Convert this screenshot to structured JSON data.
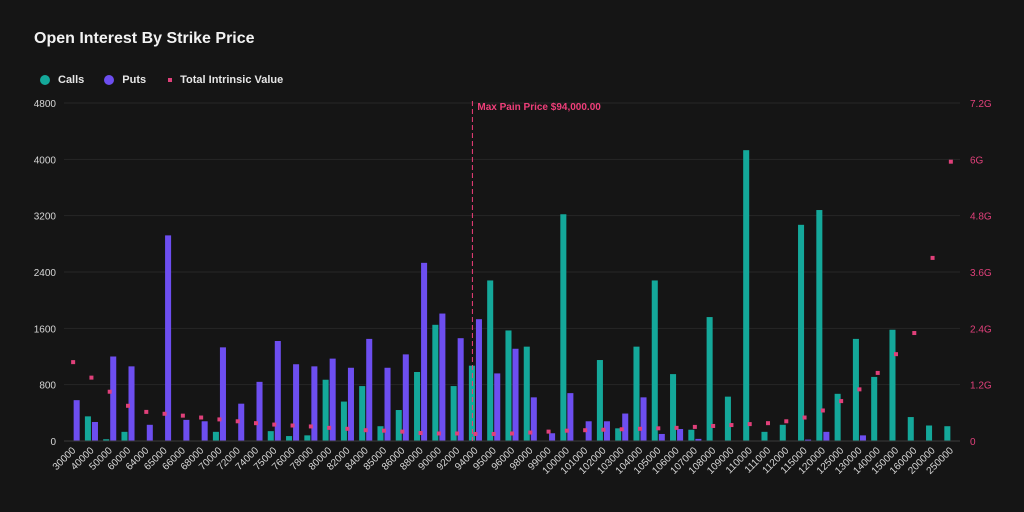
{
  "chart_data": {
    "type": "bar",
    "title": "Open Interest By Strike Price",
    "categories": [
      "30000",
      "40000",
      "50000",
      "60000",
      "64000",
      "65000",
      "66000",
      "68000",
      "70000",
      "72000",
      "74000",
      "75000",
      "76000",
      "78000",
      "80000",
      "82000",
      "84000",
      "85000",
      "86000",
      "88000",
      "90000",
      "92000",
      "94000",
      "95000",
      "96000",
      "98000",
      "99000",
      "100000",
      "101000",
      "102000",
      "103000",
      "104000",
      "105000",
      "106000",
      "107000",
      "108000",
      "109000",
      "110000",
      "111000",
      "112000",
      "115000",
      "120000",
      "125000",
      "130000",
      "140000",
      "150000",
      "160000",
      "200000",
      "250000"
    ],
    "series": [
      {
        "name": "Calls",
        "type": "bar",
        "axis": "left",
        "color": "#14a89a",
        "values": [
          5,
          350,
          25,
          130,
          5,
          5,
          5,
          5,
          130,
          5,
          5,
          140,
          70,
          80,
          870,
          560,
          780,
          210,
          440,
          980,
          1650,
          780,
          1070,
          2280,
          1570,
          1340,
          5,
          3220,
          5,
          1150,
          180,
          1340,
          2280,
          950,
          160,
          1760,
          630,
          4130,
          130,
          230,
          3070,
          3280,
          670,
          1450,
          910,
          1580,
          340,
          220,
          210
        ]
      },
      {
        "name": "Puts",
        "type": "bar",
        "axis": "left",
        "color": "#6d4ef0",
        "values": [
          580,
          270,
          1200,
          1060,
          230,
          2920,
          300,
          280,
          1330,
          530,
          840,
          1420,
          1090,
          1060,
          1170,
          1040,
          1450,
          1040,
          1230,
          2530,
          1810,
          1460,
          1730,
          960,
          1310,
          620,
          110,
          680,
          280,
          280,
          390,
          620,
          100,
          170,
          30,
          5,
          5,
          5,
          5,
          5,
          20,
          130,
          5,
          80,
          5,
          5,
          5,
          5,
          5
        ]
      },
      {
        "name": "Total Intrinsic Value",
        "type": "scatter",
        "axis": "right",
        "color": "#e0407a",
        "values": [
          1680000000.0,
          1350000000.0,
          1050000000.0,
          750000000.0,
          620000000.0,
          580000000.0,
          540000000.0,
          500000000.0,
          460000000.0,
          420000000.0,
          380000000.0,
          350000000.0,
          330000000.0,
          310000000.0,
          280000000.0,
          260000000.0,
          230000000.0,
          220000000.0,
          200000000.0,
          170000000.0,
          160000000.0,
          160000000.0,
          150000000.0,
          150000000.0,
          160000000.0,
          180000000.0,
          200000000.0,
          220000000.0,
          230000000.0,
          240000000.0,
          250000000.0,
          260000000.0,
          270000000.0,
          280000000.0,
          300000000.0,
          320000000.0,
          340000000.0,
          360000000.0,
          380000000.0,
          420000000.0,
          500000000.0,
          650000000.0,
          850000000.0,
          1100000000.0,
          1450000000.0,
          1850000000.0,
          2300000000.0,
          3900000000.0,
          5950000000.0
        ]
      }
    ],
    "y_left": {
      "min": 0,
      "max": 4800,
      "ticks": [
        "0",
        "800",
        "1600",
        "2400",
        "3200",
        "4000",
        "4800"
      ]
    },
    "y_right": {
      "min": 0,
      "max": 7200000000.0,
      "ticks": [
        "0",
        "1.2G",
        "2.4G",
        "3.6G",
        "4.8G",
        "6G",
        "7.2G"
      ]
    },
    "annotation": {
      "label": "Max Pain Price $94,000.00",
      "category": "94000",
      "color": "#ef3f7a"
    },
    "grid": true,
    "legend_position": "top-left"
  },
  "legend": {
    "calls": "Calls",
    "puts": "Puts",
    "intrinsic": "Total Intrinsic Value",
    "colors": {
      "calls": "#14a89a",
      "puts": "#6d4ef0",
      "intrinsic": "#e0407a"
    }
  }
}
